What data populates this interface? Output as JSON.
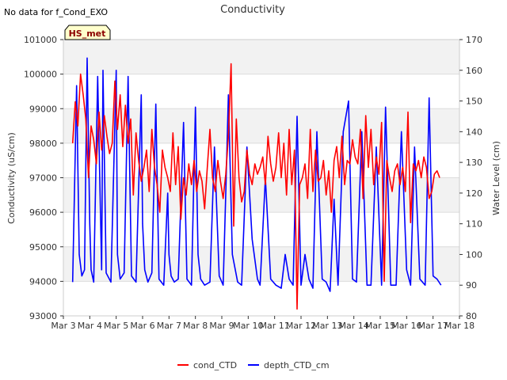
{
  "chart_data": {
    "type": "line",
    "title": "Conductivity",
    "note": "No data for f_Cond_EXO",
    "badge": "HS_met",
    "xlabel": "",
    "ylabel_left": "Conductivity (uS/cm)",
    "ylabel_right": "Water Level (cm)",
    "ylim_left": [
      93000,
      101000
    ],
    "ylim_right": [
      80,
      170
    ],
    "xlim": [
      3,
      18
    ],
    "x_ticks": [
      3,
      4,
      5,
      6,
      7,
      8,
      9,
      10,
      11,
      12,
      13,
      14,
      15,
      16,
      17,
      18
    ],
    "x_tick_labels": [
      "Mar 3",
      "Mar 4",
      "Mar 5",
      "Mar 6",
      "Mar 7",
      "Mar 8",
      "Mar 9",
      "Mar 10",
      "Mar 11",
      "Mar 12",
      "Mar 13",
      "Mar 14",
      "Mar 15",
      "Mar 16",
      "Mar 17",
      "Mar 18"
    ],
    "y_left_ticks": [
      93000,
      94000,
      95000,
      96000,
      97000,
      98000,
      99000,
      100000,
      101000
    ],
    "y_left_tick_labels": [
      "93000",
      "94000",
      "95000",
      "96000",
      "97000",
      "98000",
      "99000",
      "100000",
      "101000"
    ],
    "y_right_ticks": [
      80,
      90,
      100,
      110,
      120,
      130,
      140,
      150,
      160,
      170
    ],
    "y_right_tick_labels": [
      "80",
      "90",
      "100",
      "110",
      "120",
      "130",
      "140",
      "150",
      "160",
      "170"
    ],
    "grid": true,
    "legend_position": "bottom-center",
    "series": [
      {
        "name": "cond_CTD",
        "color": "#ff0000",
        "axis": "left",
        "x": [
          3.35,
          3.45,
          3.55,
          3.65,
          3.75,
          3.85,
          3.95,
          4.05,
          4.15,
          4.25,
          4.35,
          4.45,
          4.55,
          4.65,
          4.75,
          4.85,
          4.95,
          5.05,
          5.15,
          5.25,
          5.35,
          5.45,
          5.55,
          5.65,
          5.75,
          5.85,
          5.95,
          6.05,
          6.15,
          6.25,
          6.35,
          6.45,
          6.55,
          6.65,
          6.75,
          6.85,
          6.95,
          7.05,
          7.15,
          7.25,
          7.35,
          7.45,
          7.55,
          7.65,
          7.75,
          7.85,
          7.95,
          8.05,
          8.15,
          8.25,
          8.35,
          8.45,
          8.55,
          8.65,
          8.75,
          8.85,
          8.95,
          9.05,
          9.15,
          9.25,
          9.35,
          9.45,
          9.55,
          9.65,
          9.75,
          9.85,
          9.95,
          10.05,
          10.15,
          10.25,
          10.35,
          10.45,
          10.55,
          10.65,
          10.75,
          10.85,
          10.95,
          11.05,
          11.15,
          11.25,
          11.35,
          11.45,
          11.55,
          11.65,
          11.75,
          11.85,
          11.95,
          12.05,
          12.15,
          12.25,
          12.35,
          12.45,
          12.55,
          12.65,
          12.75,
          12.85,
          12.95,
          13.05,
          13.15,
          13.25,
          13.35,
          13.45,
          13.55,
          13.65,
          13.75,
          13.85,
          13.95,
          14.05,
          14.15,
          14.25,
          14.35,
          14.45,
          14.55,
          14.65,
          14.75,
          14.85,
          14.95,
          15.05,
          15.15,
          15.25,
          15.35,
          15.45,
          15.55,
          15.65,
          15.75,
          15.85,
          15.95,
          16.05,
          16.15,
          16.25,
          16.35,
          16.45,
          16.55,
          16.65,
          16.75,
          16.85,
          16.95,
          17.05,
          17.15,
          17.25
        ],
        "values": [
          98000,
          99200,
          98500,
          100000,
          99400,
          98700,
          97000,
          98500,
          98100,
          97400,
          98900,
          97800,
          98800,
          98200,
          97700,
          98000,
          99800,
          98400,
          99400,
          97900,
          99100,
          98000,
          98700,
          96500,
          98300,
          97500,
          96900,
          97300,
          97800,
          96600,
          98400,
          97300,
          96800,
          96000,
          97800,
          97300,
          97000,
          96600,
          98300,
          96800,
          97900,
          95800,
          97000,
          96500,
          97400,
          96800,
          97500,
          96600,
          97200,
          96900,
          96100,
          97300,
          98400,
          97000,
          96600,
          97500,
          96900,
          96400,
          97100,
          98200,
          100300,
          95600,
          98700,
          97000,
          96300,
          96600,
          97800,
          97100,
          96800,
          97400,
          97100,
          97300,
          97600,
          96800,
          98200,
          97400,
          96900,
          97300,
          98300,
          97000,
          98000,
          96500,
          98400,
          96800,
          97800,
          93200,
          96800,
          97000,
          97400,
          96400,
          98400,
          96600,
          97800,
          96900,
          97000,
          97500,
          96500,
          97200,
          96000,
          97500,
          97900,
          97000,
          98200,
          96800,
          97500,
          97400,
          98100,
          97600,
          97400,
          98400,
          96400,
          98800,
          97300,
          98400,
          96800,
          97600,
          97100,
          98600,
          94000,
          97500,
          97000,
          96600,
          97200,
          97400,
          96800,
          97300,
          96600,
          98900,
          95700,
          97400,
          97200,
          97500,
          97000,
          97600,
          97300,
          96400,
          96600,
          97100,
          97200,
          97000
        ]
      },
      {
        "name": "depth_CTD_cm",
        "color": "#0000ff",
        "axis": "right",
        "x": [
          3.35,
          3.5,
          3.6,
          3.7,
          3.8,
          3.9,
          4.0,
          4.05,
          4.15,
          4.3,
          4.45,
          4.5,
          4.62,
          4.8,
          5.0,
          5.05,
          5.15,
          5.3,
          5.45,
          5.58,
          5.75,
          5.95,
          6.0,
          6.08,
          6.2,
          6.35,
          6.5,
          6.62,
          6.8,
          6.95,
          7.0,
          7.08,
          7.2,
          7.35,
          7.55,
          7.68,
          7.85,
          8.0,
          8.1,
          8.2,
          8.35,
          8.55,
          8.72,
          8.9,
          9.05,
          9.15,
          9.25,
          9.4,
          9.6,
          9.75,
          9.95,
          10.15,
          10.35,
          10.45,
          10.65,
          10.85,
          11.05,
          11.25,
          11.4,
          11.55,
          11.7,
          11.85,
          12.0,
          12.15,
          12.3,
          12.45,
          12.6,
          12.8,
          12.95,
          13.1,
          13.25,
          13.4,
          13.6,
          13.8,
          13.95,
          14.1,
          14.3,
          14.5,
          14.65,
          14.85,
          15.05,
          15.2,
          15.4,
          15.6,
          15.8,
          16.0,
          16.15,
          16.3,
          16.5,
          16.7,
          16.85,
          17.0,
          17.15,
          17.3
        ],
        "values": [
          91,
          155,
          100,
          93,
          95,
          164,
          110,
          95,
          91,
          158,
          95,
          160,
          94,
          91,
          160,
          100,
          92,
          94,
          158,
          93,
          91,
          152,
          110,
          95,
          91,
          94,
          149,
          92,
          90,
          120,
          100,
          93,
          91,
          92,
          143,
          92,
          90,
          148,
          100,
          92,
          90,
          91,
          135,
          93,
          90,
          120,
          152,
          100,
          91,
          90,
          135,
          105,
          92,
          90,
          125,
          92,
          90,
          89,
          100,
          92,
          90,
          145,
          90,
          100,
          92,
          89,
          140,
          92,
          91,
          88,
          118,
          90,
          140,
          150,
          92,
          91,
          140,
          90,
          90,
          135,
          90,
          148,
          90,
          90,
          140,
          95,
          90,
          135,
          92,
          90,
          151,
          93,
          92,
          90
        ]
      }
    ]
  }
}
